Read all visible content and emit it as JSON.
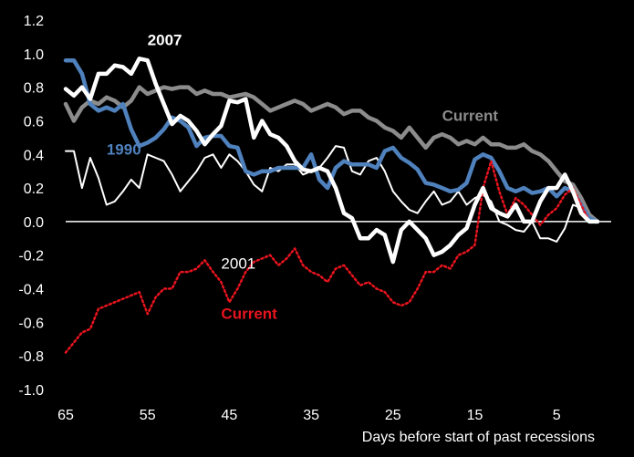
{
  "chart_data": {
    "type": "line",
    "xlabel": "Days before start of past recessions",
    "ylabel": "",
    "title": "",
    "x_reversed": true,
    "xlim": [
      65,
      -1
    ],
    "ylim": [
      -1.0,
      1.2
    ],
    "y_ticks": [
      "1.2",
      "1.0",
      "0.8",
      "0.6",
      "0.4",
      "0.2",
      "0.0",
      "-0.2",
      "-0.4",
      "-0.6",
      "-0.8",
      "-1.0"
    ],
    "x_ticks": [
      "65",
      "55",
      "45",
      "35",
      "25",
      "15",
      "5"
    ],
    "zero_line": true,
    "series": [
      {
        "name": "2007",
        "color": "#ffffff",
        "style": "solid-thick",
        "x": [
          65,
          64,
          63,
          62,
          61,
          60,
          59,
          58,
          57,
          56,
          55,
          54,
          53,
          52,
          51,
          50,
          49,
          48,
          47,
          46,
          45,
          44,
          43,
          42,
          41,
          40,
          39,
          38,
          37,
          36,
          35,
          34,
          33,
          32,
          31,
          30,
          29,
          28,
          27,
          26,
          25,
          24,
          23,
          22,
          21,
          20,
          19,
          18,
          17,
          16,
          15,
          14,
          13,
          12,
          11,
          10,
          9,
          8,
          7,
          6,
          5,
          4,
          3,
          2,
          1,
          0
        ],
        "values": [
          0.79,
          0.75,
          0.8,
          0.73,
          0.88,
          0.88,
          0.93,
          0.92,
          0.88,
          0.97,
          0.96,
          0.82,
          0.7,
          0.58,
          0.63,
          0.6,
          0.54,
          0.46,
          0.52,
          0.57,
          0.72,
          0.71,
          0.73,
          0.5,
          0.6,
          0.52,
          0.5,
          0.45,
          0.36,
          0.31,
          0.3,
          0.32,
          0.3,
          0.2,
          0.05,
          0.02,
          -0.1,
          -0.1,
          -0.05,
          -0.08,
          -0.24,
          -0.05,
          0.0,
          -0.05,
          -0.1,
          -0.2,
          -0.18,
          -0.14,
          -0.08,
          -0.04,
          0.1,
          0.2,
          0.08,
          0.05,
          0.03,
          0.1,
          0.0,
          0.0,
          0.12,
          0.2,
          0.2,
          0.28,
          0.18,
          0.05,
          0.0,
          0.0
        ]
      },
      {
        "name": "1990",
        "color": "#4f81bd",
        "style": "solid-thick",
        "x": [
          65,
          64,
          63,
          62,
          61,
          60,
          59,
          58,
          57,
          56,
          55,
          54,
          53,
          52,
          51,
          50,
          49,
          48,
          47,
          46,
          45,
          44,
          43,
          42,
          41,
          40,
          39,
          38,
          37,
          36,
          35,
          34,
          33,
          32,
          31,
          30,
          29,
          28,
          27,
          26,
          25,
          24,
          23,
          22,
          21,
          20,
          19,
          18,
          17,
          16,
          15,
          14,
          13,
          12,
          11,
          10,
          9,
          8,
          7,
          6,
          5,
          4,
          3,
          2,
          1,
          0
        ],
        "values": [
          0.96,
          0.96,
          0.88,
          0.7,
          0.66,
          0.68,
          0.66,
          0.7,
          0.55,
          0.45,
          0.47,
          0.5,
          0.55,
          0.62,
          0.6,
          0.56,
          0.45,
          0.5,
          0.51,
          0.51,
          0.45,
          0.44,
          0.3,
          0.28,
          0.3,
          0.3,
          0.32,
          0.32,
          0.32,
          0.32,
          0.4,
          0.25,
          0.2,
          0.32,
          0.36,
          0.34,
          0.34,
          0.34,
          0.32,
          0.42,
          0.44,
          0.38,
          0.35,
          0.31,
          0.23,
          0.22,
          0.2,
          0.18,
          0.19,
          0.23,
          0.37,
          0.4,
          0.38,
          0.3,
          0.2,
          0.18,
          0.2,
          0.17,
          0.18,
          0.2,
          0.15,
          0.2,
          0.18,
          0.1,
          0.02,
          0.0
        ]
      },
      {
        "name": "Current",
        "color": "#8c8c8c",
        "style": "solid-thick",
        "x": [
          65,
          64,
          63,
          62,
          61,
          60,
          59,
          58,
          57,
          56,
          55,
          54,
          53,
          52,
          51,
          50,
          49,
          48,
          47,
          46,
          45,
          44,
          43,
          42,
          41,
          40,
          39,
          38,
          37,
          36,
          35,
          34,
          33,
          32,
          31,
          30,
          29,
          28,
          27,
          26,
          25,
          24,
          23,
          22,
          21,
          20,
          19,
          18,
          17,
          16,
          15,
          14,
          13,
          12,
          11,
          10,
          9,
          8,
          7,
          6,
          5,
          4,
          3,
          2,
          1,
          0
        ],
        "values": [
          0.7,
          0.6,
          0.68,
          0.72,
          0.7,
          0.74,
          0.72,
          0.68,
          0.72,
          0.8,
          0.76,
          0.78,
          0.8,
          0.79,
          0.8,
          0.8,
          0.76,
          0.78,
          0.76,
          0.76,
          0.74,
          0.75,
          0.76,
          0.74,
          0.7,
          0.66,
          0.68,
          0.7,
          0.72,
          0.7,
          0.66,
          0.68,
          0.7,
          0.68,
          0.64,
          0.66,
          0.66,
          0.62,
          0.6,
          0.56,
          0.54,
          0.5,
          0.56,
          0.5,
          0.44,
          0.5,
          0.52,
          0.5,
          0.46,
          0.48,
          0.46,
          0.5,
          0.46,
          0.46,
          0.44,
          0.44,
          0.46,
          0.42,
          0.4,
          0.36,
          0.3,
          0.24,
          0.22,
          0.14,
          0.04,
          0.0
        ]
      },
      {
        "name": "2001",
        "color": "#ffffff",
        "style": "solid-thin",
        "x": [
          65,
          64,
          63,
          62,
          61,
          60,
          59,
          58,
          57,
          56,
          55,
          54,
          53,
          52,
          51,
          50,
          49,
          48,
          47,
          46,
          45,
          44,
          43,
          42,
          41,
          40,
          39,
          38,
          37,
          36,
          35,
          34,
          33,
          32,
          31,
          30,
          29,
          28,
          27,
          26,
          25,
          24,
          23,
          22,
          21,
          20,
          19,
          18,
          17,
          16,
          15,
          14,
          13,
          12,
          11,
          10,
          9,
          8,
          7,
          6,
          5,
          4,
          3,
          2,
          1,
          0
        ],
        "values": [
          0.42,
          0.42,
          0.2,
          0.38,
          0.26,
          0.1,
          0.12,
          0.18,
          0.25,
          0.2,
          0.4,
          0.38,
          0.36,
          0.28,
          0.18,
          0.24,
          0.3,
          0.38,
          0.4,
          0.32,
          0.4,
          0.36,
          0.3,
          0.22,
          0.18,
          0.32,
          0.3,
          0.34,
          0.34,
          0.28,
          0.3,
          0.32,
          0.38,
          0.45,
          0.44,
          0.3,
          0.28,
          0.36,
          0.38,
          0.3,
          0.18,
          0.12,
          0.07,
          0.05,
          0.12,
          0.18,
          0.1,
          0.12,
          0.18,
          0.1,
          0.14,
          0.16,
          0.12,
          0.0,
          -0.02,
          -0.05,
          -0.06,
          0.0,
          -0.1,
          -0.1,
          -0.12,
          -0.04,
          0.1,
          0.08,
          0.02,
          0.0
        ]
      },
      {
        "name": "Current",
        "color": "#e8141e",
        "style": "dotted",
        "x": [
          65,
          64,
          63,
          62,
          61,
          60,
          59,
          58,
          57,
          56,
          55,
          54,
          53,
          52,
          51,
          50,
          49,
          48,
          47,
          46,
          45,
          44,
          43,
          42,
          41,
          40,
          39,
          38,
          37,
          36,
          35,
          34,
          33,
          32,
          31,
          30,
          29,
          28,
          27,
          26,
          25,
          24,
          23,
          22,
          21,
          20,
          19,
          18,
          17,
          16,
          15,
          14,
          13,
          12,
          11,
          10,
          9,
          8,
          7,
          6,
          5,
          4,
          3,
          2,
          1,
          0
        ],
        "values": [
          -0.78,
          -0.72,
          -0.66,
          -0.64,
          -0.52,
          -0.5,
          -0.48,
          -0.46,
          -0.44,
          -0.42,
          -0.55,
          -0.45,
          -0.4,
          -0.4,
          -0.3,
          -0.3,
          -0.28,
          -0.23,
          -0.3,
          -0.36,
          -0.48,
          -0.4,
          -0.3,
          -0.24,
          -0.22,
          -0.2,
          -0.26,
          -0.22,
          -0.16,
          -0.26,
          -0.3,
          -0.32,
          -0.36,
          -0.28,
          -0.26,
          -0.32,
          -0.38,
          -0.36,
          -0.4,
          -0.42,
          -0.48,
          -0.5,
          -0.48,
          -0.4,
          -0.3,
          -0.3,
          -0.26,
          -0.28,
          -0.2,
          -0.18,
          -0.14,
          0.2,
          0.36,
          0.18,
          0.04,
          0.14,
          0.1,
          0.04,
          -0.02,
          0.04,
          0.08,
          0.16,
          0.2,
          0.1,
          0.0,
          0.0
        ]
      }
    ],
    "annotations": [
      {
        "text": "2007",
        "color": "#ffffff",
        "weight": "bold",
        "x": 55,
        "y": 1.05
      },
      {
        "text": "Current",
        "color": "#8c8c8c",
        "weight": "bold",
        "x": 19,
        "y": 0.6
      },
      {
        "text": "1990",
        "color": "#4f81bd",
        "weight": "bold",
        "x": 60,
        "y": 0.4
      },
      {
        "text": "2001",
        "color": "#ffffff",
        "weight": "normal",
        "x": 46,
        "y": -0.28
      },
      {
        "text": "Current",
        "color": "#e8141e",
        "weight": "bold",
        "x": 46,
        "y": -0.58
      }
    ]
  }
}
